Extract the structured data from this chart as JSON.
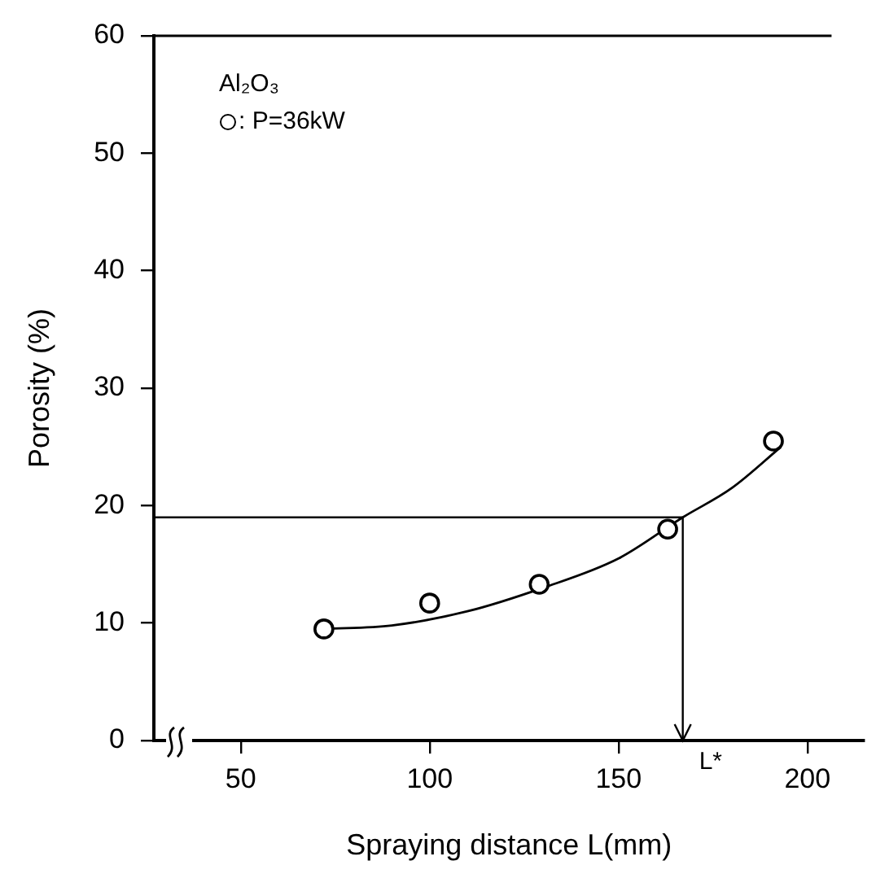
{
  "chart_data": {
    "type": "scatter",
    "xlabel": "Spraying distance L(mm)",
    "ylabel": "Porosity (%)",
    "annotations": [
      "Al₂O₃"
    ],
    "x": [
      72,
      100,
      129,
      163,
      191
    ],
    "series": [
      {
        "name": ": P=36kW",
        "color": "#000000",
        "values": [
          9.5,
          11.7,
          13.3,
          18,
          25.5
        ],
        "marker": "circle"
      },
      {
        "type": "line",
        "color": "#000000",
        "x": [
          72,
          90,
          110,
          130,
          150,
          167,
          180,
          193
        ],
        "values": [
          9.5,
          9.8,
          11,
          13,
          15.5,
          19,
          21.5,
          25
        ],
        "marker": "none"
      }
    ],
    "ref_lines": [
      {
        "axis": "y",
        "value": 19
      },
      {
        "axis": "x",
        "value": 167,
        "label": "L*"
      }
    ],
    "xlim": [
      27,
      215
    ],
    "xticks": [
      50,
      100,
      150,
      200
    ],
    "ylim": [
      0,
      60
    ],
    "yticks": [
      0,
      10,
      20,
      30,
      40,
      50,
      60
    ],
    "grid": false,
    "legend": "top left"
  }
}
